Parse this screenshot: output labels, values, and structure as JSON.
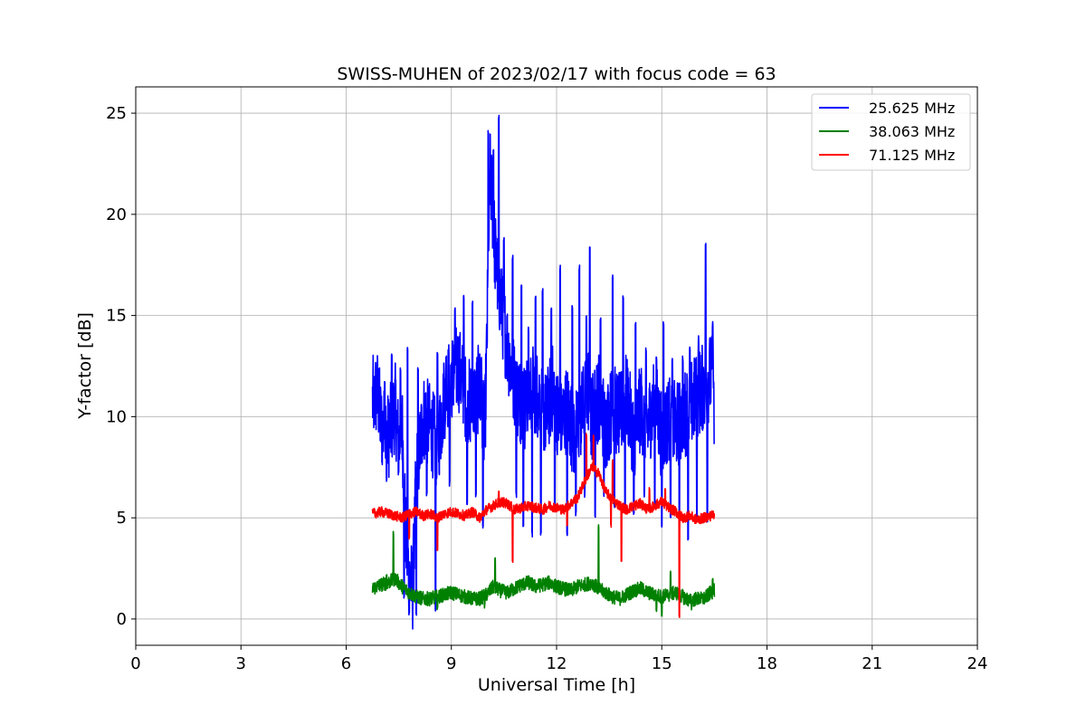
{
  "chart_data": {
    "type": "line",
    "title": "SWISS-MUHEN of 2023/02/17 with focus code = 63",
    "xlabel": "Universal Time [h]",
    "ylabel": "Y-factor [dB]",
    "xlim": [
      0,
      24
    ],
    "ylim": [
      -1.3,
      26.3
    ],
    "xticks": [
      0,
      3,
      6,
      9,
      12,
      15,
      18,
      21,
      24
    ],
    "yticks": [
      0,
      5,
      10,
      15,
      20,
      25
    ],
    "grid": true,
    "legend_position": "top-right",
    "series": [
      {
        "name": "25.625 MHz",
        "color": "#0000ff",
        "x": [
          6.75,
          6.9,
          7.0,
          7.2,
          7.4,
          7.5,
          7.6,
          7.7,
          7.8,
          7.9,
          8.0,
          8.2,
          8.4,
          8.6,
          8.8,
          9.0,
          9.2,
          9.4,
          9.6,
          9.8,
          9.95,
          10.0,
          10.1,
          10.15,
          10.25,
          10.35,
          10.5,
          10.7,
          10.9,
          11.1,
          11.3,
          11.5,
          11.7,
          11.9,
          12.1,
          12.3,
          12.5,
          12.7,
          12.9,
          13.0,
          13.2,
          13.4,
          13.6,
          13.8,
          14.0,
          14.2,
          14.4,
          14.6,
          14.8,
          15.0,
          15.2,
          15.4,
          15.6,
          15.8,
          16.0,
          16.2,
          16.4,
          16.5
        ],
        "y": [
          10.8,
          11.2,
          9.5,
          9.0,
          10.5,
          8.5,
          9.5,
          4.0,
          2.0,
          1.5,
          7.0,
          10.0,
          9.5,
          8.5,
          11.0,
          12.0,
          12.5,
          11.0,
          10.5,
          11.5,
          9.0,
          12.5,
          22.0,
          21.0,
          18.0,
          16.5,
          14.5,
          12.5,
          11.0,
          10.5,
          11.5,
          11.0,
          10.0,
          11.5,
          9.5,
          10.5,
          9.0,
          10.0,
          11.5,
          10.0,
          11.0,
          9.5,
          10.5,
          10.0,
          11.0,
          9.0,
          10.5,
          9.5,
          11.0,
          9.0,
          10.0,
          9.5,
          10.0,
          10.5,
          11.0,
          11.5,
          12.0,
          11.5
        ],
        "peaks": [
          [
            6.8,
            12.2
          ],
          [
            7.1,
            11.8
          ],
          [
            7.3,
            13.3
          ],
          [
            7.55,
            12.5
          ],
          [
            7.75,
            13.5
          ],
          [
            8.05,
            12.5
          ],
          [
            8.6,
            13.3
          ],
          [
            8.85,
            13.0
          ],
          [
            9.1,
            15.5
          ],
          [
            9.35,
            16.0
          ],
          [
            9.6,
            15.8
          ],
          [
            9.85,
            13.0
          ],
          [
            10.05,
            24.2
          ],
          [
            10.2,
            23.3
          ],
          [
            10.35,
            25.0
          ],
          [
            10.5,
            19.0
          ],
          [
            10.75,
            18.0
          ],
          [
            11.0,
            16.5
          ],
          [
            11.2,
            14.5
          ],
          [
            11.4,
            16.0
          ],
          [
            11.6,
            16.5
          ],
          [
            11.85,
            15.5
          ],
          [
            12.1,
            17.5
          ],
          [
            12.45,
            15.5
          ],
          [
            12.65,
            17.5
          ],
          [
            12.85,
            15.0
          ],
          [
            12.95,
            18.4
          ],
          [
            13.25,
            15.0
          ],
          [
            13.6,
            17.0
          ],
          [
            13.9,
            16.0
          ],
          [
            14.25,
            14.8
          ],
          [
            14.55,
            13.5
          ],
          [
            14.85,
            13.0
          ],
          [
            15.05,
            14.7
          ],
          [
            15.3,
            13.0
          ],
          [
            15.6,
            13.0
          ],
          [
            15.8,
            13.5
          ],
          [
            16.05,
            14.0
          ],
          [
            16.25,
            18.7
          ],
          [
            16.45,
            14.7
          ]
        ],
        "troughs": [
          [
            7.15,
            6.8
          ],
          [
            7.65,
            1.0
          ],
          [
            7.8,
            0.2
          ],
          [
            8.0,
            0.0
          ],
          [
            8.3,
            6.0
          ],
          [
            8.55,
            0.2
          ],
          [
            8.95,
            6.5
          ],
          [
            9.45,
            5.5
          ],
          [
            9.7,
            6.0
          ],
          [
            9.9,
            4.5
          ],
          [
            10.85,
            6.0
          ],
          [
            11.05,
            4.5
          ],
          [
            11.3,
            4.0
          ],
          [
            11.55,
            4.0
          ],
          [
            11.95,
            5.5
          ],
          [
            12.3,
            4.0
          ],
          [
            12.55,
            5.0
          ],
          [
            12.8,
            6.0
          ],
          [
            13.1,
            5.0
          ],
          [
            13.35,
            6.0
          ],
          [
            13.65,
            5.5
          ],
          [
            13.95,
            5.5
          ],
          [
            14.2,
            5.0
          ],
          [
            14.5,
            6.0
          ],
          [
            14.8,
            5.5
          ],
          [
            15.0,
            4.5
          ],
          [
            15.25,
            5.0
          ],
          [
            15.5,
            4.5
          ],
          [
            15.75,
            3.8
          ],
          [
            16.0,
            5.0
          ],
          [
            16.3,
            4.8
          ],
          [
            16.5,
            8.4
          ]
        ]
      },
      {
        "name": "38.063 MHz",
        "color": "#008000",
        "x": [
          6.75,
          7.0,
          7.2,
          7.4,
          7.6,
          7.8,
          8.0,
          8.2,
          8.4,
          8.6,
          8.8,
          9.0,
          9.2,
          9.4,
          9.6,
          9.8,
          10.0,
          10.2,
          10.4,
          10.6,
          10.8,
          11.0,
          11.2,
          11.4,
          11.6,
          11.8,
          12.0,
          12.2,
          12.4,
          12.6,
          12.8,
          13.0,
          13.2,
          13.4,
          13.6,
          13.8,
          14.0,
          14.2,
          14.4,
          14.6,
          14.8,
          15.0,
          15.2,
          15.4,
          15.6,
          15.8,
          16.0,
          16.2,
          16.4,
          16.5
        ],
        "y": [
          1.5,
          1.7,
          1.8,
          2.0,
          1.6,
          1.3,
          1.1,
          1.0,
          1.0,
          1.1,
          1.2,
          1.3,
          1.2,
          1.1,
          1.0,
          1.0,
          1.2,
          1.6,
          1.4,
          1.3,
          1.5,
          1.7,
          1.8,
          1.6,
          1.7,
          1.8,
          1.6,
          1.5,
          1.4,
          1.6,
          1.7,
          1.8,
          1.5,
          1.3,
          1.1,
          1.0,
          1.2,
          1.4,
          1.5,
          1.3,
          1.2,
          1.1,
          1.2,
          1.3,
          1.1,
          0.9,
          1.0,
          1.0,
          1.3,
          1.4
        ],
        "peaks": [
          [
            7.15,
            2.3
          ],
          [
            7.35,
            4.4
          ],
          [
            10.25,
            3.1
          ],
          [
            13.2,
            4.8
          ],
          [
            15.25,
            2.4
          ],
          [
            16.45,
            2.0
          ]
        ],
        "troughs": [
          [
            8.6,
            0.4
          ],
          [
            9.95,
            0.5
          ],
          [
            14.85,
            0.2
          ],
          [
            15.0,
            0.0
          ],
          [
            15.85,
            0.4
          ]
        ]
      },
      {
        "name": "71.125 MHz",
        "color": "#ff0000",
        "x": [
          6.75,
          7.0,
          7.2,
          7.4,
          7.6,
          7.8,
          8.0,
          8.2,
          8.4,
          8.6,
          8.8,
          9.0,
          9.2,
          9.4,
          9.6,
          9.8,
          10.0,
          10.2,
          10.4,
          10.6,
          10.8,
          11.0,
          11.2,
          11.4,
          11.6,
          11.8,
          12.0,
          12.2,
          12.4,
          12.6,
          12.8,
          13.0,
          13.2,
          13.4,
          13.6,
          13.8,
          14.0,
          14.2,
          14.4,
          14.6,
          14.8,
          15.0,
          15.2,
          15.4,
          15.6,
          15.8,
          16.0,
          16.2,
          16.4,
          16.5
        ],
        "y": [
          5.2,
          5.3,
          5.2,
          5.1,
          5.0,
          5.2,
          5.3,
          5.1,
          5.2,
          5.0,
          5.2,
          5.3,
          5.2,
          5.1,
          5.3,
          5.0,
          5.4,
          5.6,
          5.8,
          5.7,
          5.4,
          5.5,
          5.6,
          5.5,
          5.4,
          5.6,
          5.5,
          5.4,
          5.7,
          6.0,
          6.8,
          7.5,
          7.2,
          6.3,
          5.9,
          5.6,
          5.4,
          5.6,
          5.7,
          5.4,
          5.6,
          5.8,
          5.5,
          5.3,
          5.0,
          5.1,
          4.9,
          5.0,
          5.1,
          5.2
        ],
        "peaks": [
          [
            10.35,
            6.5
          ],
          [
            12.85,
            9.2
          ],
          [
            13.05,
            9.1
          ],
          [
            13.6,
            7.9
          ],
          [
            14.65,
            6.5
          ],
          [
            15.1,
            6.6
          ]
        ],
        "troughs": [
          [
            7.8,
            3.8
          ],
          [
            8.6,
            3.2
          ],
          [
            10.75,
            2.7
          ],
          [
            12.3,
            4.6
          ],
          [
            13.55,
            4.5
          ],
          [
            13.85,
            2.6
          ],
          [
            15.5,
            0.0
          ]
        ]
      }
    ]
  }
}
